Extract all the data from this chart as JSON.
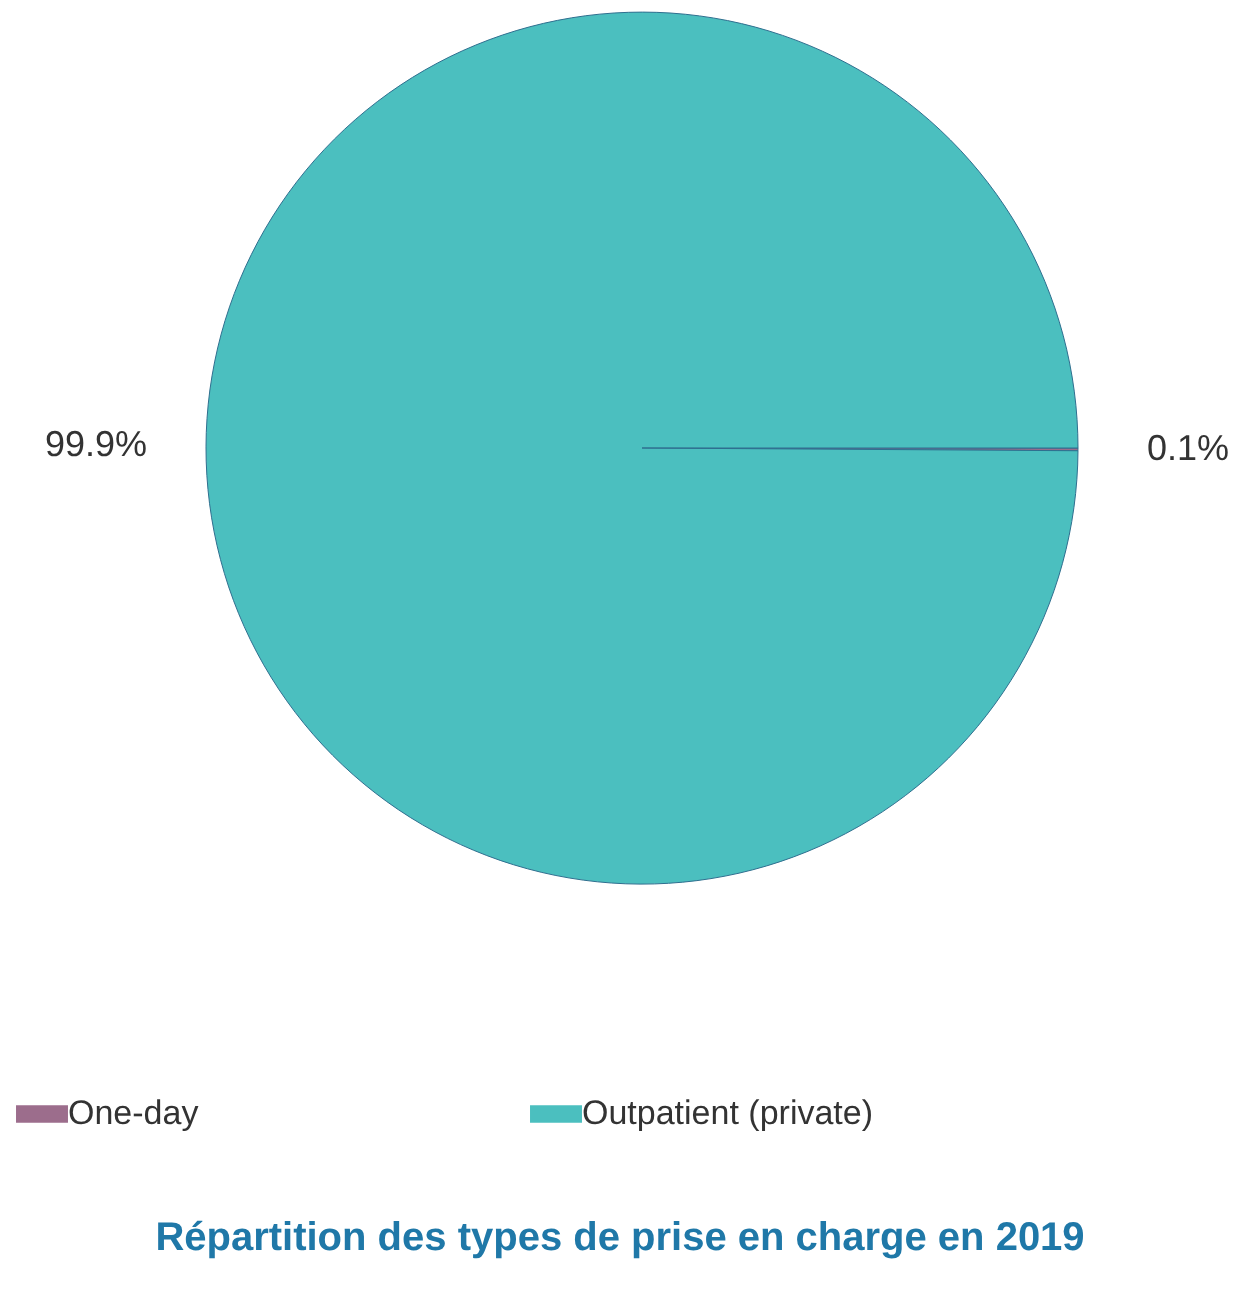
{
  "chart_data": {
    "type": "pie",
    "title": "Répartition des types de prise en charge en 2019",
    "categories": [
      "One-day",
      "Outpatient (private)"
    ],
    "values": [
      0.1,
      99.9
    ],
    "colors": [
      "#9c6d8c",
      "#4bbfbf"
    ],
    "value_labels": [
      "0.1%",
      "99.9%"
    ],
    "legend": "bottom"
  }
}
